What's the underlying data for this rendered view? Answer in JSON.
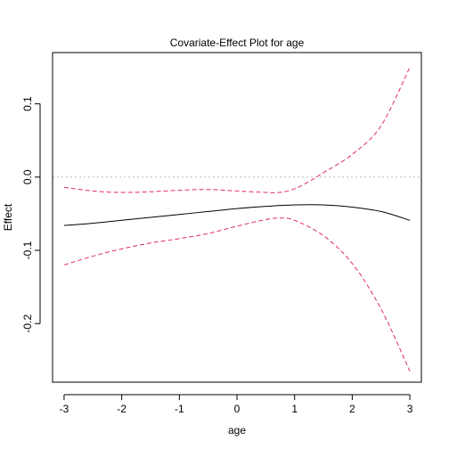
{
  "chart_data": {
    "type": "line",
    "title": "Covariate-Effect Plot for age",
    "xlabel": "age",
    "ylabel": "Effect",
    "xlim": [
      -3.2,
      3.2
    ],
    "ylim": [
      -0.28,
      0.17
    ],
    "x_ticks": [
      -3,
      -2,
      -1,
      0,
      1,
      2,
      3
    ],
    "x_tick_labels": [
      "-3",
      "-2",
      "-1",
      "0",
      "1",
      "2",
      "3"
    ],
    "y_ticks": [
      -0.2,
      -0.1,
      0.0,
      0.1
    ],
    "y_tick_labels": [
      "-0.2",
      "-0.1",
      "0.0",
      "0.1"
    ],
    "reference_line": {
      "y": 0.0,
      "style": "dotted",
      "color": "#bebebe"
    },
    "grid": false,
    "series": [
      {
        "role": "estimate",
        "style": "solid",
        "color": "#000000",
        "x": [
          -3,
          -2.5,
          -2,
          -1.5,
          -1,
          -0.5,
          0,
          0.5,
          1,
          1.5,
          2,
          2.5,
          3
        ],
        "values": [
          -0.066,
          -0.063,
          -0.059,
          -0.055,
          -0.051,
          -0.047,
          -0.043,
          -0.04,
          -0.038,
          -0.038,
          -0.041,
          -0.047,
          -0.059
        ]
      },
      {
        "role": "upper-band",
        "style": "dashed",
        "color": "#dd2c6a",
        "x": [
          -3,
          -2.5,
          -2,
          -1.5,
          -1,
          -0.5,
          0,
          0.5,
          0.75,
          1,
          1.25,
          1.5,
          2,
          2.5,
          3
        ],
        "values": [
          -0.014,
          -0.019,
          -0.021,
          -0.02,
          -0.018,
          -0.017,
          -0.019,
          -0.021,
          -0.021,
          -0.016,
          -0.006,
          0.006,
          0.031,
          0.07,
          0.15
        ]
      },
      {
        "role": "lower-band",
        "style": "dashed",
        "color": "#dd2c6a",
        "x": [
          -3,
          -2.5,
          -2,
          -1.5,
          -1,
          -0.5,
          0,
          0.5,
          0.75,
          1,
          1.5,
          2,
          2.5,
          3
        ],
        "values": [
          -0.12,
          -0.108,
          -0.098,
          -0.09,
          -0.084,
          -0.077,
          -0.067,
          -0.058,
          -0.056,
          -0.059,
          -0.08,
          -0.118,
          -0.18,
          -0.265
        ]
      }
    ]
  }
}
